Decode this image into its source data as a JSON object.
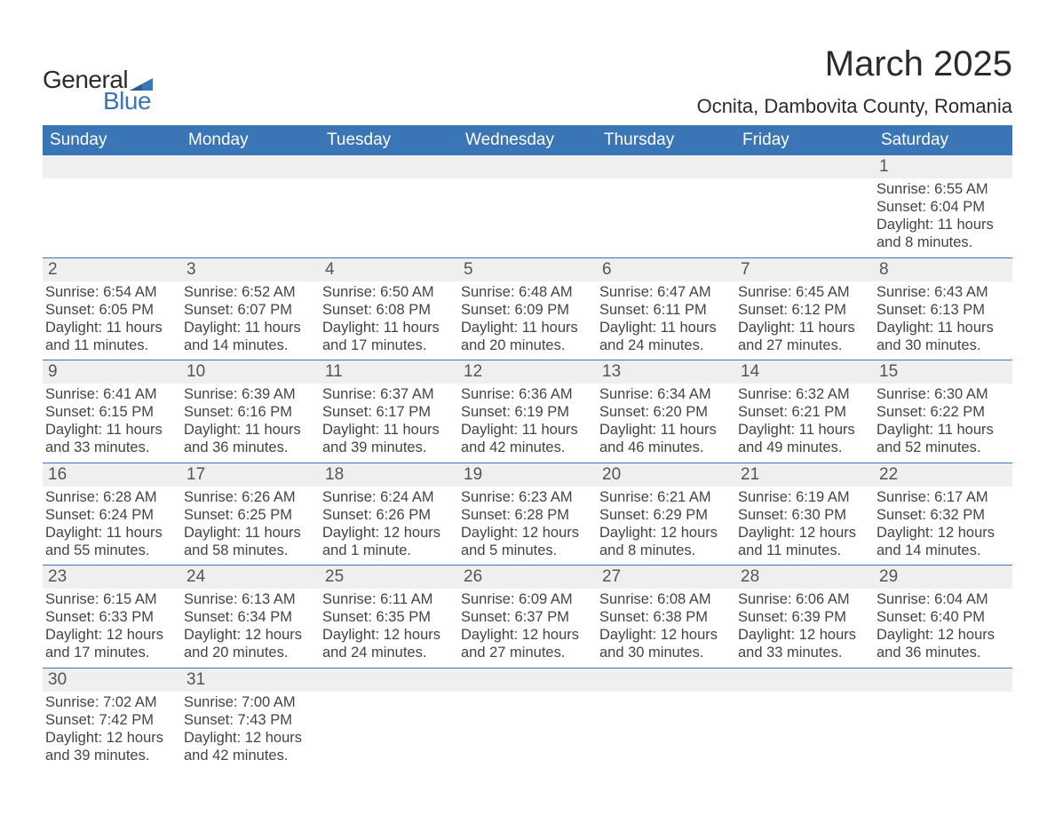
{
  "branding": {
    "logo_general": "General",
    "logo_blue": "Blue",
    "logo_mark_color": "#3a75b5"
  },
  "title": {
    "month_year": "March 2025",
    "location": "Ocnita, Dambovita County, Romania"
  },
  "colors": {
    "header_bg": "#3a75b5",
    "header_text": "#ffffff",
    "daynum_bg": "#efefef",
    "row_divider": "#3a75b5",
    "body_text": "#444444",
    "daynum_text": "#555555",
    "page_bg": "#ffffff"
  },
  "typography": {
    "title_fontsize_pt": 30,
    "location_fontsize_pt": 16,
    "weekday_fontsize_pt": 14,
    "daynum_fontsize_pt": 14,
    "detail_fontsize_pt": 12
  },
  "weekdays": [
    "Sunday",
    "Monday",
    "Tuesday",
    "Wednesday",
    "Thursday",
    "Friday",
    "Saturday"
  ],
  "weeks": [
    {
      "daynums": [
        "",
        "",
        "",
        "",
        "",
        "",
        "1"
      ],
      "details": [
        [],
        [],
        [],
        [],
        [],
        [],
        [
          "Sunrise: 6:55 AM",
          "Sunset: 6:04 PM",
          "Daylight: 11 hours and 8 minutes."
        ]
      ]
    },
    {
      "daynums": [
        "2",
        "3",
        "4",
        "5",
        "6",
        "7",
        "8"
      ],
      "details": [
        [
          "Sunrise: 6:54 AM",
          "Sunset: 6:05 PM",
          "Daylight: 11 hours and 11 minutes."
        ],
        [
          "Sunrise: 6:52 AM",
          "Sunset: 6:07 PM",
          "Daylight: 11 hours and 14 minutes."
        ],
        [
          "Sunrise: 6:50 AM",
          "Sunset: 6:08 PM",
          "Daylight: 11 hours and 17 minutes."
        ],
        [
          "Sunrise: 6:48 AM",
          "Sunset: 6:09 PM",
          "Daylight: 11 hours and 20 minutes."
        ],
        [
          "Sunrise: 6:47 AM",
          "Sunset: 6:11 PM",
          "Daylight: 11 hours and 24 minutes."
        ],
        [
          "Sunrise: 6:45 AM",
          "Sunset: 6:12 PM",
          "Daylight: 11 hours and 27 minutes."
        ],
        [
          "Sunrise: 6:43 AM",
          "Sunset: 6:13 PM",
          "Daylight: 11 hours and 30 minutes."
        ]
      ]
    },
    {
      "daynums": [
        "9",
        "10",
        "11",
        "12",
        "13",
        "14",
        "15"
      ],
      "details": [
        [
          "Sunrise: 6:41 AM",
          "Sunset: 6:15 PM",
          "Daylight: 11 hours and 33 minutes."
        ],
        [
          "Sunrise: 6:39 AM",
          "Sunset: 6:16 PM",
          "Daylight: 11 hours and 36 minutes."
        ],
        [
          "Sunrise: 6:37 AM",
          "Sunset: 6:17 PM",
          "Daylight: 11 hours and 39 minutes."
        ],
        [
          "Sunrise: 6:36 AM",
          "Sunset: 6:19 PM",
          "Daylight: 11 hours and 42 minutes."
        ],
        [
          "Sunrise: 6:34 AM",
          "Sunset: 6:20 PM",
          "Daylight: 11 hours and 46 minutes."
        ],
        [
          "Sunrise: 6:32 AM",
          "Sunset: 6:21 PM",
          "Daylight: 11 hours and 49 minutes."
        ],
        [
          "Sunrise: 6:30 AM",
          "Sunset: 6:22 PM",
          "Daylight: 11 hours and 52 minutes."
        ]
      ]
    },
    {
      "daynums": [
        "16",
        "17",
        "18",
        "19",
        "20",
        "21",
        "22"
      ],
      "details": [
        [
          "Sunrise: 6:28 AM",
          "Sunset: 6:24 PM",
          "Daylight: 11 hours and 55 minutes."
        ],
        [
          "Sunrise: 6:26 AM",
          "Sunset: 6:25 PM",
          "Daylight: 11 hours and 58 minutes."
        ],
        [
          "Sunrise: 6:24 AM",
          "Sunset: 6:26 PM",
          "Daylight: 12 hours and 1 minute."
        ],
        [
          "Sunrise: 6:23 AM",
          "Sunset: 6:28 PM",
          "Daylight: 12 hours and 5 minutes."
        ],
        [
          "Sunrise: 6:21 AM",
          "Sunset: 6:29 PM",
          "Daylight: 12 hours and 8 minutes."
        ],
        [
          "Sunrise: 6:19 AM",
          "Sunset: 6:30 PM",
          "Daylight: 12 hours and 11 minutes."
        ],
        [
          "Sunrise: 6:17 AM",
          "Sunset: 6:32 PM",
          "Daylight: 12 hours and 14 minutes."
        ]
      ]
    },
    {
      "daynums": [
        "23",
        "24",
        "25",
        "26",
        "27",
        "28",
        "29"
      ],
      "details": [
        [
          "Sunrise: 6:15 AM",
          "Sunset: 6:33 PM",
          "Daylight: 12 hours and 17 minutes."
        ],
        [
          "Sunrise: 6:13 AM",
          "Sunset: 6:34 PM",
          "Daylight: 12 hours and 20 minutes."
        ],
        [
          "Sunrise: 6:11 AM",
          "Sunset: 6:35 PM",
          "Daylight: 12 hours and 24 minutes."
        ],
        [
          "Sunrise: 6:09 AM",
          "Sunset: 6:37 PM",
          "Daylight: 12 hours and 27 minutes."
        ],
        [
          "Sunrise: 6:08 AM",
          "Sunset: 6:38 PM",
          "Daylight: 12 hours and 30 minutes."
        ],
        [
          "Sunrise: 6:06 AM",
          "Sunset: 6:39 PM",
          "Daylight: 12 hours and 33 minutes."
        ],
        [
          "Sunrise: 6:04 AM",
          "Sunset: 6:40 PM",
          "Daylight: 12 hours and 36 minutes."
        ]
      ]
    },
    {
      "daynums": [
        "30",
        "31",
        "",
        "",
        "",
        "",
        ""
      ],
      "details": [
        [
          "Sunrise: 7:02 AM",
          "Sunset: 7:42 PM",
          "Daylight: 12 hours and 39 minutes."
        ],
        [
          "Sunrise: 7:00 AM",
          "Sunset: 7:43 PM",
          "Daylight: 12 hours and 42 minutes."
        ],
        [],
        [],
        [],
        [],
        []
      ]
    }
  ]
}
